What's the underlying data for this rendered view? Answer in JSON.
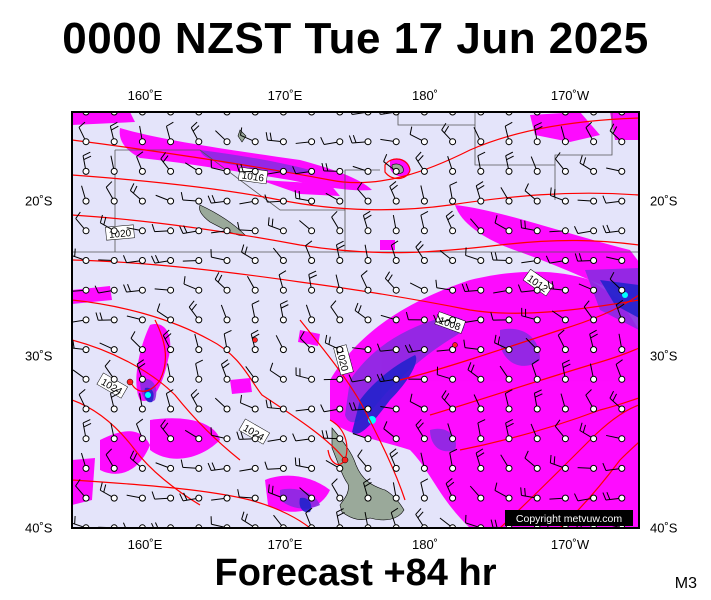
{
  "title": "0000 NZST Tue 17 Jun 2025",
  "footer": "Forecast +84 hr",
  "model_id": "M3",
  "copyright": "Copyright metvuw.com",
  "lon_ticks": [
    "160˚E",
    "170˚E",
    "180˚",
    "170˚W"
  ],
  "lat_ticks": [
    "20˚S",
    "30˚S",
    "40˚S"
  ],
  "isobar_labels": [
    "1016",
    "1020",
    "1012",
    "1008",
    "1020",
    "1024",
    "1024"
  ],
  "colors": {
    "ocean": "#e4e4fa",
    "isobar": "#ff0000",
    "precip_light": "#ff00ff",
    "precip_moderate": "#8a2be2",
    "precip_heavy": "#2222cc",
    "precip_extreme": "#00ffff",
    "land": "#9aa99a"
  }
}
